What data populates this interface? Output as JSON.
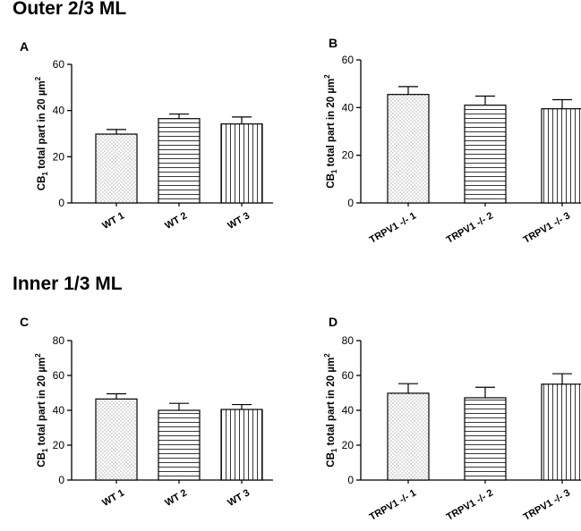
{
  "sections": {
    "top": "Outer 2/3 ML",
    "bottom": "Inner 1/3 ML"
  },
  "chart_data": [
    {
      "panel": "A",
      "type": "bar",
      "categories": [
        "WT 1",
        "WT 2",
        "WT 3"
      ],
      "values": [
        29.8,
        36.5,
        34.2
      ],
      "errors": [
        2.0,
        2.0,
        3.0
      ],
      "patterns": [
        "dots",
        "horizontal",
        "vertical"
      ],
      "ylabel": "CB1 total part in 20 µm2",
      "ylabel_parts": [
        "CB",
        "1",
        " total part in 20 µm",
        "2"
      ],
      "ylim": [
        0,
        60
      ],
      "yticks": [
        0,
        20,
        40,
        60
      ]
    },
    {
      "panel": "B",
      "type": "bar",
      "categories": [
        "TRPV1 -/- 1",
        "TRPV1 -/- 2",
        "TRPV1 -/- 3"
      ],
      "values": [
        45.5,
        41.0,
        39.5
      ],
      "errors": [
        3.3,
        3.8,
        3.8
      ],
      "patterns": [
        "dots",
        "horizontal",
        "vertical"
      ],
      "ylabel": "CB1 total part in 20 µm2",
      "ylabel_parts": [
        "CB",
        "1",
        " total part in 20 µm",
        "2"
      ],
      "ylim": [
        0,
        60
      ],
      "yticks": [
        0,
        20,
        40,
        60
      ]
    },
    {
      "panel": "C",
      "type": "bar",
      "categories": [
        "WT 1",
        "WT 2",
        "WT 3"
      ],
      "values": [
        46.5,
        40.0,
        40.5
      ],
      "errors": [
        3.0,
        4.0,
        2.8
      ],
      "patterns": [
        "dots",
        "horizontal",
        "vertical"
      ],
      "ylabel": "CB1 total part in 20 µm2",
      "ylabel_parts": [
        "CB",
        "1",
        " total part in 20 µm",
        "2"
      ],
      "ylim": [
        0,
        80
      ],
      "yticks": [
        0,
        20,
        40,
        60,
        80
      ]
    },
    {
      "panel": "D",
      "type": "bar",
      "categories": [
        "TRPV1 -/- 1",
        "TRPV1 -/- 2",
        "TRPV1 -/- 3"
      ],
      "values": [
        49.8,
        47.2,
        55.0
      ],
      "errors": [
        5.5,
        6.0,
        6.0
      ],
      "patterns": [
        "dots",
        "horizontal",
        "vertical"
      ],
      "ylabel": "CB1 total part in 20 µm2",
      "ylabel_parts": [
        "CB",
        "1",
        " total part in 20 µm",
        "2"
      ],
      "ylim": [
        0,
        80
      ],
      "yticks": [
        0,
        20,
        40,
        60,
        80
      ]
    }
  ]
}
